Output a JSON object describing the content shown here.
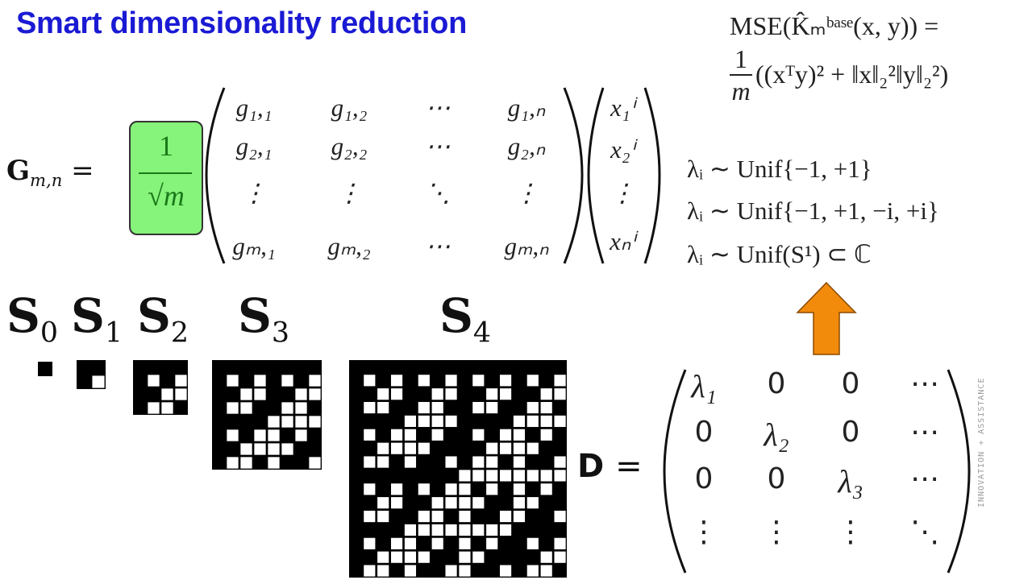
{
  "title": "Smart dimensionality reduction",
  "mse": {
    "line1": "MSE(K̂ₘᵇᵃˢᵉ(x, y)) =",
    "line2_num": "1",
    "line2_den": "m",
    "line2_rest": "((xᵀy)² + ‖x‖₂²‖y‖₂²)"
  },
  "lambdas": [
    "λᵢ ∼ Unif{−1, +1}",
    "λᵢ ∼ Unif{−1, +1, −i, +i}",
    "λᵢ ∼ Unif(S¹) ⊂ ℂ"
  ],
  "g_matrix": {
    "lhs_symbol": "G",
    "lhs_sub": "m,n",
    "equals": "=",
    "frac_num": "1",
    "frac_den": "√m",
    "rows": [
      [
        "g₁,₁",
        "g₁,₂",
        "⋯",
        "g₁,ₙ"
      ],
      [
        "g₂,₁",
        "g₂,₂",
        "⋯",
        "g₂,ₙ"
      ],
      [
        "⋮",
        "⋮",
        "⋱",
        "⋮"
      ],
      [
        "gₘ,₁",
        "gₘ,₂",
        "⋯",
        "gₘ,ₙ"
      ]
    ],
    "x_vector": [
      "x₁ⁱ",
      "x₂ⁱ",
      "⋮",
      "xₙⁱ"
    ]
  },
  "s_labels": [
    {
      "sym": "S",
      "sub": "0"
    },
    {
      "sym": "S",
      "sub": "1"
    },
    {
      "sym": "S",
      "sub": "2"
    },
    {
      "sym": "S",
      "sub": "3"
    },
    {
      "sym": "S",
      "sub": "4"
    }
  ],
  "d_matrix": {
    "lhs": "D",
    "equals": "=",
    "rows": [
      [
        "λ₁",
        "0",
        "0",
        "⋯"
      ],
      [
        "0",
        "λ₂",
        "0",
        "⋯"
      ],
      [
        "0",
        "0",
        "λ₃",
        "⋯"
      ],
      [
        "⋮",
        "⋮",
        "⋮",
        "⋱"
      ]
    ]
  },
  "watermark": "INNOVATION + ASSISTANCE",
  "colors": {
    "title": "#1a1ad4",
    "frac_box": "#86f37a",
    "arrow": "#f28a0c",
    "grid_black": "#000000",
    "grid_white": "#ffffff"
  }
}
